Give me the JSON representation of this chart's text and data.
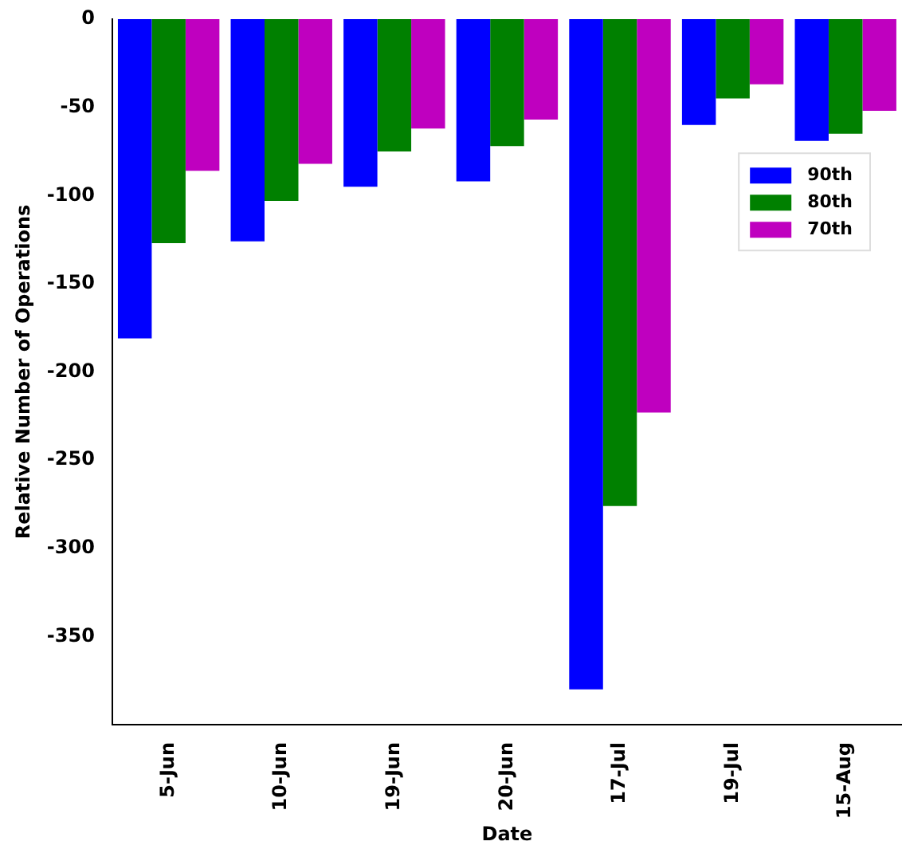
{
  "chart_data": {
    "type": "bar",
    "xlabel": "Date",
    "ylabel": "Relative Number of Operations",
    "categories": [
      "5-Jun",
      "10-Jun",
      "19-Jun",
      "20-Jun",
      "17-Jul",
      "19-Jul",
      "15-Aug"
    ],
    "series": [
      {
        "name": "90th",
        "color": "#0000ff",
        "values": [
          -181,
          -126,
          -95,
          -92,
          -380,
          -60,
          -69
        ]
      },
      {
        "name": "80th",
        "color": "#008000",
        "values": [
          -127,
          -103,
          -75,
          -72,
          -276,
          -45,
          -65
        ]
      },
      {
        "name": "70th",
        "color": "#bf00bf",
        "values": [
          -86,
          -82,
          -62,
          -57,
          -223,
          -37,
          -52
        ]
      }
    ],
    "ylim": [
      -400,
      0
    ],
    "yticks": [
      0,
      -50,
      -100,
      -150,
      -200,
      -250,
      -300,
      -350
    ],
    "grid": false,
    "legend": "right"
  }
}
